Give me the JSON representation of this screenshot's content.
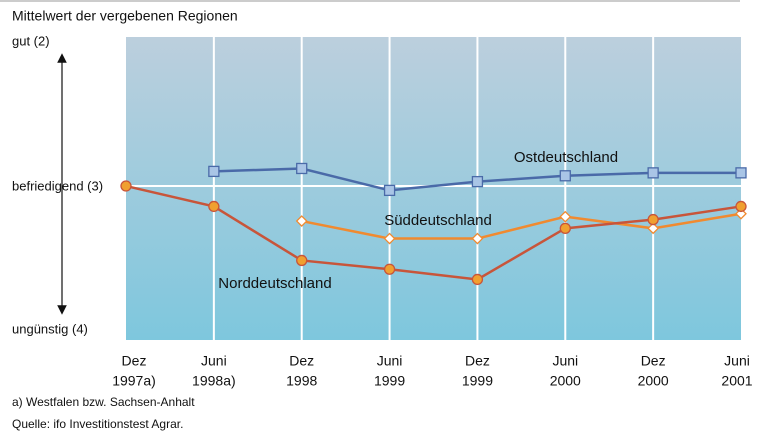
{
  "chart_data": {
    "type": "line",
    "title": "Mittelwert der vergebenen Regionen",
    "categories": [
      [
        "Dez",
        "1997a)"
      ],
      [
        "Juni",
        "1998a)"
      ],
      [
        "Dez",
        "1998"
      ],
      [
        "Juni",
        "1999"
      ],
      [
        "Dez",
        "1999"
      ],
      [
        "Juni",
        "2000"
      ],
      [
        "Dez",
        "2000"
      ],
      [
        "Juni",
        "2001"
      ]
    ],
    "ylim": [
      4,
      2
    ],
    "yticks": [
      {
        "value": 2,
        "label": "gut (2)"
      },
      {
        "value": 3,
        "label": "befriedigend (3)"
      },
      {
        "value": 4,
        "label": "ungünstig (4)"
      }
    ],
    "grid": true,
    "series": [
      {
        "name": "Ostdeutschland",
        "color": "#4a6aa8",
        "marker": "square",
        "marker_fill": "#a9c5e6",
        "values": [
          null,
          2.9,
          2.88,
          3.03,
          2.97,
          2.93,
          2.91,
          2.91
        ]
      },
      {
        "name": "Süddeutschland",
        "color": "#f08a30",
        "marker": "diamond",
        "marker_fill": "#ffffff",
        "values": [
          null,
          null,
          3.24,
          3.36,
          3.36,
          3.21,
          3.29,
          3.19
        ]
      },
      {
        "name": "Norddeutschland",
        "color": "#c8553a",
        "marker": "circle",
        "marker_fill": "#f0a030",
        "values": [
          3.0,
          3.14,
          3.51,
          3.57,
          3.64,
          3.29,
          3.23,
          3.14
        ]
      }
    ],
    "notes": [
      "a) Westfalen bzw. Sachsen-Anhalt",
      "Quelle: ifo Investitionstest Agrar."
    ]
  }
}
